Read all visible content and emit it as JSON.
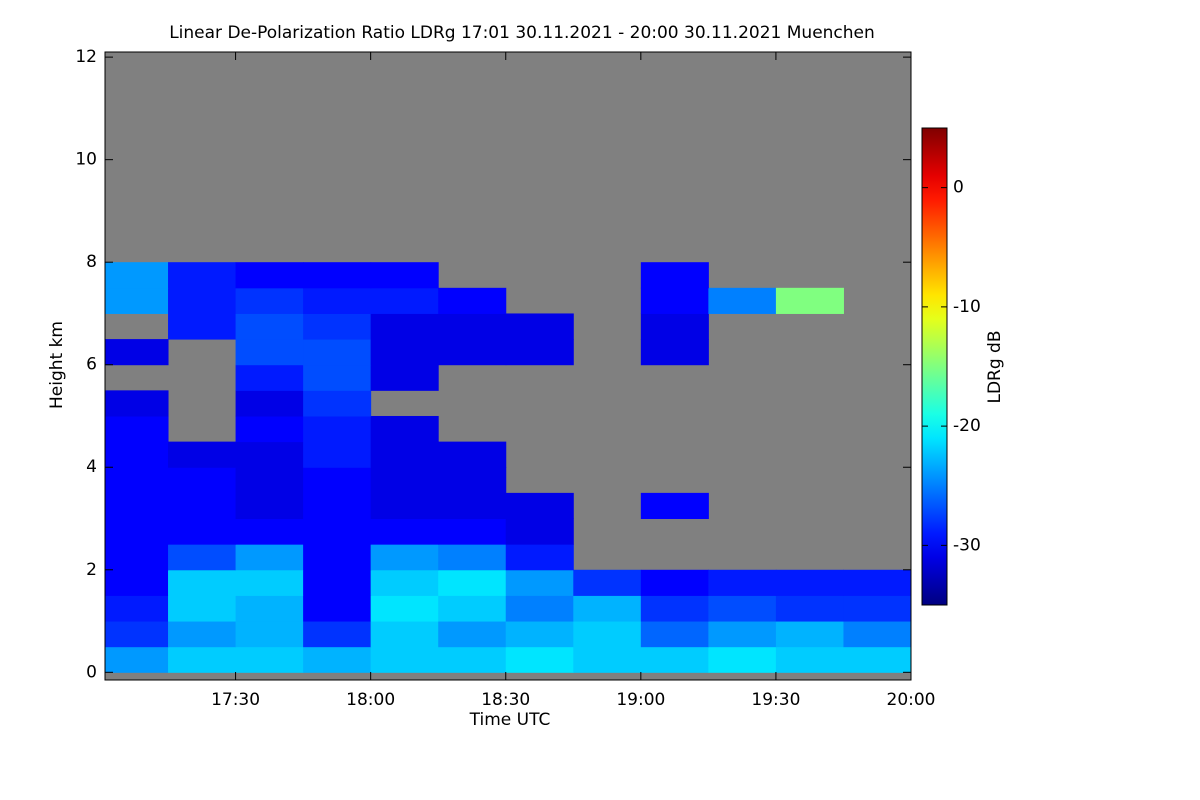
{
  "chart_data": {
    "type": "heatmap",
    "title": "Linear De-Polarization Ratio LDRg   17:01 30.11.2021 - 20:00 30.11.2021 Muenchen",
    "x_label": "Time UTC",
    "y_label": "Height km",
    "colorbar_label": "LDRg dB",
    "x_bins": [
      17.0167,
      17.25,
      17.5,
      17.75,
      18.0,
      18.25,
      18.5,
      18.75,
      19.0,
      19.25,
      19.5,
      19.75,
      20.0
    ],
    "y_bins": [
      0,
      0.5,
      1,
      1.5,
      2,
      2.5,
      3,
      3.5,
      4,
      4.5,
      5,
      5.5,
      6,
      6.5,
      7,
      7.5,
      8
    ],
    "values": [
      [
        -24,
        -22,
        -22,
        -23,
        -22,
        -22,
        -21,
        -22,
        -22,
        -21,
        -22,
        -22
      ],
      [
        -28,
        -24,
        -23,
        -28,
        -22,
        -24,
        -23,
        -22,
        -26,
        -24,
        -23,
        -25
      ],
      [
        -29,
        -22,
        -23,
        -30,
        -21,
        -22,
        -25,
        -23,
        -28,
        -27,
        -28,
        -28
      ],
      [
        -30,
        -22,
        -22,
        -30,
        -22,
        -21,
        -24,
        -28,
        -30,
        -29,
        -29,
        -29
      ],
      [
        -30,
        -27,
        -24,
        -30,
        -24,
        -25,
        -29,
        null,
        null,
        null,
        null,
        null
      ],
      [
        -30,
        -30,
        -30,
        -30,
        -30,
        -30,
        -31,
        null,
        null,
        null,
        null,
        null
      ],
      [
        -30,
        -30,
        -31,
        -30,
        -31,
        -31,
        -31,
        null,
        -30,
        null,
        null,
        null
      ],
      [
        -30,
        -30,
        -31,
        -30,
        -31,
        -31,
        null,
        null,
        null,
        null,
        null,
        null
      ],
      [
        -30,
        -31,
        -31,
        -29,
        -31,
        -31,
        null,
        null,
        null,
        null,
        null,
        null
      ],
      [
        -30,
        null,
        -30,
        -29,
        -31,
        null,
        null,
        null,
        null,
        null,
        null,
        null
      ],
      [
        -31,
        null,
        -31,
        -28,
        null,
        null,
        null,
        null,
        null,
        null,
        null,
        null
      ],
      [
        null,
        null,
        -29,
        -27,
        -31,
        null,
        null,
        null,
        null,
        null,
        null,
        null
      ],
      [
        -31,
        null,
        -27,
        -27,
        -31,
        -31,
        -31,
        null,
        -31,
        null,
        null,
        null
      ],
      [
        null,
        -29,
        -27,
        -28,
        -31,
        -31,
        -31,
        null,
        -31,
        null,
        null,
        null
      ],
      [
        -24,
        -29,
        -28,
        -29,
        -29,
        -30,
        null,
        null,
        -30,
        -25,
        -15,
        null
      ],
      [
        -24,
        -29,
        -30,
        -30,
        -30,
        null,
        null,
        null,
        -30,
        null,
        null,
        null
      ]
    ],
    "xlim": [
      17.0167,
      20.0
    ],
    "xticks": [
      {
        "value": 17.5,
        "label": "17:30"
      },
      {
        "value": 18.0,
        "label": "18:00"
      },
      {
        "value": 18.5,
        "label": "18:30"
      },
      {
        "value": 19.0,
        "label": "19:00"
      },
      {
        "value": 19.5,
        "label": "19:30"
      },
      {
        "value": 20.0,
        "label": "20:00"
      }
    ],
    "ylim": [
      -0.15,
      12.1
    ],
    "yticks": [
      0,
      2,
      4,
      6,
      8,
      10,
      12
    ],
    "clim": [
      -35,
      5
    ],
    "cticks": [
      0,
      -10,
      -20,
      -30
    ],
    "colormap": "jet",
    "missing_color": "#808080"
  }
}
